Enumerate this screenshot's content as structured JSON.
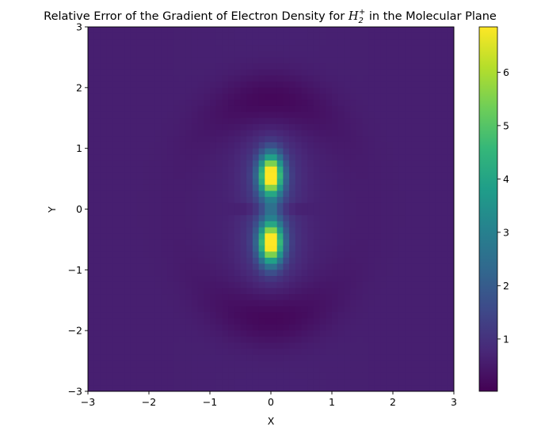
{
  "chart_data": {
    "type": "heatmap",
    "title_pre": "Relative Error of the Gradient of Electron Density for ",
    "title_math_base": "H",
    "title_math_sub": "2",
    "title_math_sup": "+",
    "title_post": " in the Molecular Plane",
    "xlabel": "X",
    "ylabel": "Y",
    "xlim": [
      -3,
      3
    ],
    "ylim": [
      -3,
      3
    ],
    "xticks": [
      -3,
      -2,
      -1,
      0,
      1,
      2,
      3
    ],
    "yticks": [
      -3,
      -2,
      -1,
      0,
      1,
      2,
      3
    ],
    "xtick_labels": [
      "−3",
      "−2",
      "−1",
      "0",
      "1",
      "2",
      "3"
    ],
    "ytick_labels": [
      "−3",
      "−2",
      "−1",
      "0",
      "1",
      "2",
      "3"
    ],
    "colorbar": {
      "min": 0.02,
      "max": 6.85,
      "ticks": [
        1,
        2,
        3,
        4,
        5,
        6
      ],
      "tick_labels": [
        "1",
        "2",
        "3",
        "4",
        "5",
        "6"
      ],
      "colormap": "viridis"
    },
    "grid": false,
    "nuclei_y": [
      0.55,
      -0.55
    ],
    "peak_value": 6.85,
    "center_value": 1.5,
    "background_value": 0.6,
    "trough_value": 0.1,
    "colors": {
      "viridis_stops": [
        "#440154",
        "#482878",
        "#3e4989",
        "#31688e",
        "#26828e",
        "#1f9e89",
        "#35b779",
        "#6ece58",
        "#b5de2b",
        "#fde725"
      ]
    }
  }
}
